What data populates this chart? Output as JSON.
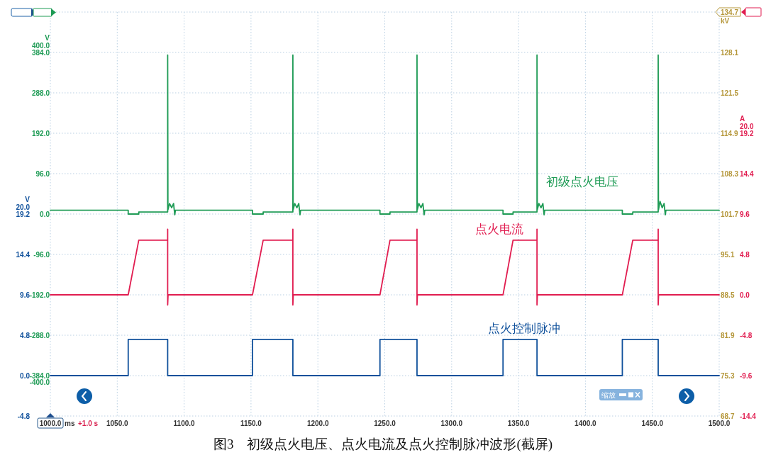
{
  "chart_data": {
    "type": "line",
    "xlabel": "ms",
    "ylabel": "V",
    "y2label": "A",
    "y3label": "V",
    "xlim": [
      1000,
      1500
    ],
    "xticks": [
      {
        "value": 1000,
        "label": "1000.0"
      },
      {
        "value": 1050,
        "label": "1050.0"
      },
      {
        "value": 1100,
        "label": "1100.0"
      },
      {
        "value": 1150,
        "label": "1150.0"
      },
      {
        "value": 1200,
        "label": "1200.0"
      },
      {
        "value": 1250,
        "label": "1250.0"
      },
      {
        "value": 1300,
        "label": "1300.0"
      },
      {
        "value": 1350,
        "label": "1350.0"
      },
      {
        "value": 1400,
        "label": "1400.0"
      },
      {
        "value": 1450,
        "label": "1450.0"
      },
      {
        "value": 1500,
        "label": "1500.0"
      }
    ],
    "ylim": [
      -480,
      480
    ],
    "yticks": [
      {
        "value": -400,
        "label": "-400.0"
      },
      {
        "value": -384,
        "label": "-384.0"
      },
      {
        "value": -288,
        "label": "-288.0"
      },
      {
        "value": -192,
        "label": "-192.0"
      },
      {
        "value": -96,
        "label": "-96.0"
      },
      {
        "value": 0,
        "label": "0.0"
      },
      {
        "value": 96,
        "label": "96.0"
      },
      {
        "value": 192,
        "label": "192.0"
      },
      {
        "value": 288,
        "label": "288.0"
      },
      {
        "value": 384,
        "label": "384.0"
      },
      {
        "value": 400,
        "label": "400.0"
      }
    ],
    "y2lim": [
      -14.4,
      33.6
    ],
    "y2ticks": [
      -14.4,
      -9.6,
      -4.8,
      {
        "value": 0,
        "label": "0.0"
      },
      4.8,
      9.6,
      14.4,
      19.2,
      {
        "value": 20,
        "label": "20.0"
      }
    ],
    "y3lim": [
      -4.8,
      43.2
    ],
    "y3ticks": [
      -4.8,
      {
        "value": 0,
        "label": "0.0"
      },
      4.8,
      9.6,
      14.4,
      19.2,
      {
        "value": 20,
        "label": "20.0"
      }
    ],
    "grid": true,
    "line_style": "solid",
    "annotations": [
      "+1.0 s",
      "缩放",
      "图3　初级点火电压、点火电流及点火控制脉冲波形(截屏)",
      "kV",
      "134.7",
      "128.1",
      "121.5",
      "114.9",
      "108.3",
      "101.7",
      "95.1",
      "88.5",
      "81.9",
      "75.3",
      "68.7"
    ],
    "series": [
      {
        "name": "初级点火电压",
        "color": "#1e9b55",
        "x": [
          1000,
          1058.2,
          1058.2,
          1066.1,
          1066.1,
          1087.7,
          1087.7,
          1087.9,
          1089.1,
          1090.7,
          1092.1,
          1093.0,
          1093.5,
          1151.1,
          1151.1,
          1159.1,
          1159.1,
          1181.3,
          1181.3,
          1181.5,
          1182.7,
          1184.3,
          1185.7,
          1186.6,
          1187.1,
          1246.4,
          1246.4,
          1253.9,
          1253.9,
          1274.1,
          1274.1,
          1274.3,
          1275.5,
          1277.1,
          1278.5,
          1279.4,
          1279.9,
          1338.4,
          1338.4,
          1345.9,
          1345.9,
          1363.8,
          1363.8,
          1364.0,
          1365.2,
          1366.8,
          1368.2,
          1369.1,
          1369.6,
          1427.6,
          1427.6,
          1435.4,
          1435.4,
          1454.4,
          1454.4,
          1454.6,
          1455.8,
          1457.4,
          1458.8,
          1459.7,
          1460.2,
          1500
        ],
        "values": [
          9,
          9,
          0,
          0,
          5,
          5,
          378,
          10,
          25,
          15,
          25,
          -2,
          9,
          9,
          0,
          0,
          5,
          5,
          378,
          10,
          25,
          15,
          25,
          -2,
          9,
          9,
          0,
          0,
          5,
          5,
          378,
          10,
          25,
          15,
          25,
          -2,
          9,
          9,
          0,
          0,
          5,
          5,
          378,
          10,
          25,
          15,
          25,
          -2,
          9,
          9,
          0,
          0,
          5,
          5,
          378,
          10,
          30,
          15,
          25,
          -2,
          9,
          9
        ]
      },
      {
        "name": "点火电流",
        "color": "#e11d50",
        "axis": "y2",
        "x": [
          1000,
          1058.2,
          1066.1,
          1087.7,
          1087.7,
          1087.7,
          1088.0,
          1151.1,
          1159.1,
          1181.3,
          1181.3,
          1181.3,
          1181.6,
          1246.4,
          1253.9,
          1274.1,
          1274.1,
          1274.1,
          1274.4,
          1338.4,
          1345.9,
          1363.8,
          1363.8,
          1363.8,
          1364.1,
          1427.6,
          1435.4,
          1454.4,
          1454.4,
          1454.4,
          1454.7,
          1500
        ],
        "values": [
          0,
          0,
          6.5,
          6.5,
          7.8,
          -1.2,
          0,
          0,
          6.5,
          6.5,
          7.8,
          -1.2,
          0,
          0,
          6.5,
          6.5,
          7.8,
          -1.2,
          0,
          0,
          6.5,
          6.5,
          7.8,
          -1.2,
          0,
          0,
          6.5,
          6.5,
          7.8,
          -1.2,
          0,
          0
        ]
      },
      {
        "name": "点火控制脉冲",
        "color": "#0f509b",
        "axis": "y3",
        "x": [
          1000,
          1058.2,
          1058.2,
          1087.7,
          1087.7,
          1151.1,
          1151.1,
          1181.3,
          1181.3,
          1246.4,
          1246.4,
          1274.1,
          1274.1,
          1338.4,
          1338.4,
          1363.8,
          1363.8,
          1427.6,
          1427.6,
          1454.4,
          1454.4,
          1500
        ],
        "values": [
          0,
          0,
          4.3,
          4.3,
          0,
          0,
          4.3,
          4.3,
          0,
          0,
          4.3,
          4.3,
          0,
          0,
          4.3,
          4.3,
          0,
          0,
          4.3,
          4.3,
          0,
          0
        ]
      }
    ]
  }
}
